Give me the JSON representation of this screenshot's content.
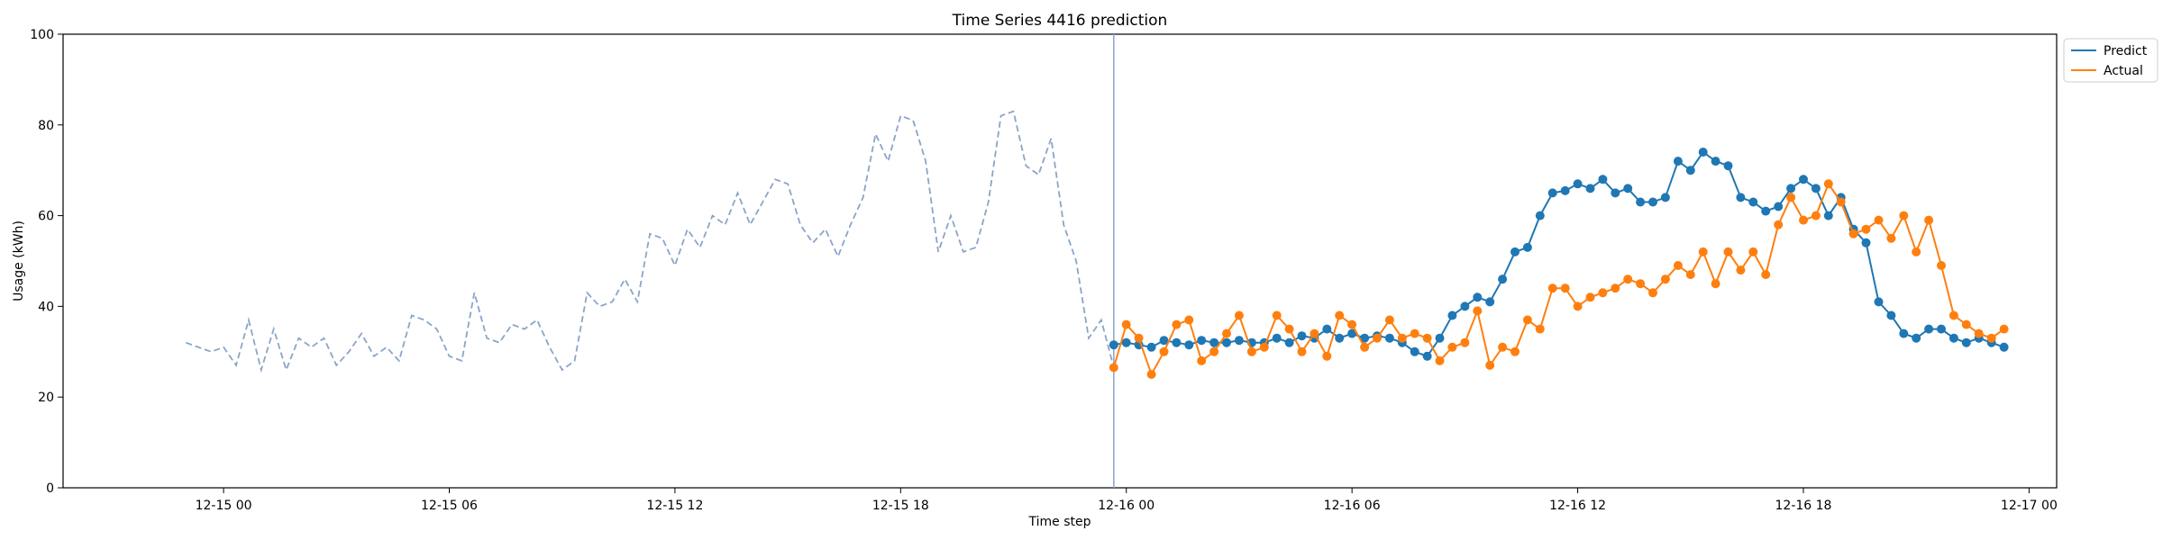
{
  "chart_data": {
    "type": "line",
    "title": "Time Series 4416 prediction",
    "xlabel": "Time step",
    "ylabel": "Usage (kWh)",
    "ylim": [
      0,
      100
    ],
    "y_ticks": [
      0,
      20,
      40,
      60,
      80,
      100
    ],
    "x_ticks": [
      "12-15 00",
      "12-15 06",
      "12-15 12",
      "12-15 18",
      "12-16 00",
      "12-16 06",
      "12-16 12",
      "12-16 18",
      "12-17 00"
    ],
    "legend_position": "outside-top-right",
    "colors": {
      "history": "#8aa5c8",
      "predict": "#1f77b4",
      "actual": "#ff7f0e",
      "divider": "#8aa5c8"
    },
    "history": {
      "x": [
        "2024-12-14 23:00",
        "2024-12-14 23:20",
        "2024-12-14 23:40",
        "2024-12-15 00:00",
        "2024-12-15 00:20",
        "2024-12-15 00:40",
        "2024-12-15 01:00",
        "2024-12-15 01:20",
        "2024-12-15 01:40",
        "2024-12-15 02:00",
        "2024-12-15 02:20",
        "2024-12-15 02:40",
        "2024-12-15 03:00",
        "2024-12-15 03:20",
        "2024-12-15 03:40",
        "2024-12-15 04:00",
        "2024-12-15 04:20",
        "2024-12-15 04:40",
        "2024-12-15 05:00",
        "2024-12-15 05:20",
        "2024-12-15 05:40",
        "2024-12-15 06:00",
        "2024-12-15 06:20",
        "2024-12-15 06:40",
        "2024-12-15 07:00",
        "2024-12-15 07:20",
        "2024-12-15 07:40",
        "2024-12-15 08:00",
        "2024-12-15 08:20",
        "2024-12-15 08:40",
        "2024-12-15 09:00",
        "2024-12-15 09:20",
        "2024-12-15 09:40",
        "2024-12-15 10:00",
        "2024-12-15 10:20",
        "2024-12-15 10:40",
        "2024-12-15 11:00",
        "2024-12-15 11:20",
        "2024-12-15 11:40",
        "2024-12-15 12:00",
        "2024-12-15 12:20",
        "2024-12-15 12:40",
        "2024-12-15 13:00",
        "2024-12-15 13:20",
        "2024-12-15 13:40",
        "2024-12-15 14:00",
        "2024-12-15 14:20",
        "2024-12-15 14:40",
        "2024-12-15 15:00",
        "2024-12-15 15:20",
        "2024-12-15 15:40",
        "2024-12-15 16:00",
        "2024-12-15 16:20",
        "2024-12-15 16:40",
        "2024-12-15 17:00",
        "2024-12-15 17:20",
        "2024-12-15 17:40",
        "2024-12-15 18:00",
        "2024-12-15 18:20",
        "2024-12-15 18:40",
        "2024-12-15 19:00",
        "2024-12-15 19:20",
        "2024-12-15 19:40",
        "2024-12-15 20:00",
        "2024-12-15 20:20",
        "2024-12-15 20:40",
        "2024-12-15 21:00",
        "2024-12-15 21:20",
        "2024-12-15 21:40",
        "2024-12-15 22:00",
        "2024-12-15 22:20",
        "2024-12-15 22:40",
        "2024-12-15 23:00",
        "2024-12-15 23:20"
      ],
      "y": [
        32,
        31,
        30,
        31,
        27,
        37,
        26,
        35,
        26,
        33,
        31,
        33,
        27,
        30,
        34,
        29,
        31,
        28,
        38,
        37,
        35,
        29,
        28,
        43,
        33,
        32,
        36,
        35,
        37,
        31,
        26,
        28,
        43,
        40,
        41,
        46,
        41,
        56,
        55,
        49,
        57,
        53,
        60,
        58,
        65,
        58,
        63,
        68,
        67,
        58,
        54,
        57,
        51,
        58,
        64,
        78,
        72,
        82,
        81,
        72,
        52,
        60,
        52,
        53,
        63,
        82,
        83,
        71,
        69,
        77,
        58,
        50,
        33,
        37
      ]
    },
    "predict": {
      "x": [
        "2024-12-15 23:40",
        "2024-12-16 00:00",
        "2024-12-16 00:20",
        "2024-12-16 00:40",
        "2024-12-16 01:00",
        "2024-12-16 01:20",
        "2024-12-16 01:40",
        "2024-12-16 02:00",
        "2024-12-16 02:20",
        "2024-12-16 02:40",
        "2024-12-16 03:00",
        "2024-12-16 03:20",
        "2024-12-16 03:40",
        "2024-12-16 04:00",
        "2024-12-16 04:20",
        "2024-12-16 04:40",
        "2024-12-16 05:00",
        "2024-12-16 05:20",
        "2024-12-16 05:40",
        "2024-12-16 06:00",
        "2024-12-16 06:20",
        "2024-12-16 06:40",
        "2024-12-16 07:00",
        "2024-12-16 07:20",
        "2024-12-16 07:40",
        "2024-12-16 08:00",
        "2024-12-16 08:20",
        "2024-12-16 08:40",
        "2024-12-16 09:00",
        "2024-12-16 09:20",
        "2024-12-16 09:40",
        "2024-12-16 10:00",
        "2024-12-16 10:20",
        "2024-12-16 10:40",
        "2024-12-16 11:00",
        "2024-12-16 11:20",
        "2024-12-16 11:40",
        "2024-12-16 12:00",
        "2024-12-16 12:20",
        "2024-12-16 12:40",
        "2024-12-16 13:00",
        "2024-12-16 13:20",
        "2024-12-16 13:40",
        "2024-12-16 14:00",
        "2024-12-16 14:20",
        "2024-12-16 14:40",
        "2024-12-16 15:00",
        "2024-12-16 15:20",
        "2024-12-16 15:40",
        "2024-12-16 16:00",
        "2024-12-16 16:20",
        "2024-12-16 16:40",
        "2024-12-16 17:00",
        "2024-12-16 17:20",
        "2024-12-16 17:40",
        "2024-12-16 18:00",
        "2024-12-16 18:20",
        "2024-12-16 18:40",
        "2024-12-16 19:00",
        "2024-12-16 19:20",
        "2024-12-16 19:40",
        "2024-12-16 20:00",
        "2024-12-16 20:20",
        "2024-12-16 20:40",
        "2024-12-16 21:00",
        "2024-12-16 21:20",
        "2024-12-16 21:40",
        "2024-12-16 22:00",
        "2024-12-16 22:20",
        "2024-12-16 22:40",
        "2024-12-16 23:00",
        "2024-12-16 23:20"
      ],
      "y": [
        31.5,
        32,
        31.5,
        31,
        32.5,
        32,
        31.5,
        32.5,
        32,
        32,
        32.5,
        32,
        32,
        33,
        32,
        33.5,
        33,
        35,
        33,
        34,
        33,
        33.5,
        33,
        32,
        30,
        29,
        33,
        38,
        40,
        42,
        41,
        46,
        52,
        53,
        60,
        65,
        65.5,
        67,
        66,
        68,
        65,
        66,
        63,
        63,
        64,
        72,
        70,
        74,
        72,
        71,
        64,
        63,
        61,
        62,
        66,
        68,
        66,
        60,
        64,
        57,
        54,
        41,
        38,
        34,
        33,
        35,
        35,
        33,
        32,
        33,
        32,
        31
      ]
    },
    "actual": {
      "x": [
        "2024-12-15 23:40",
        "2024-12-16 00:00",
        "2024-12-16 00:20",
        "2024-12-16 00:40",
        "2024-12-16 01:00",
        "2024-12-16 01:20",
        "2024-12-16 01:40",
        "2024-12-16 02:00",
        "2024-12-16 02:20",
        "2024-12-16 02:40",
        "2024-12-16 03:00",
        "2024-12-16 03:20",
        "2024-12-16 03:40",
        "2024-12-16 04:00",
        "2024-12-16 04:20",
        "2024-12-16 04:40",
        "2024-12-16 05:00",
        "2024-12-16 05:20",
        "2024-12-16 05:40",
        "2024-12-16 06:00",
        "2024-12-16 06:20",
        "2024-12-16 06:40",
        "2024-12-16 07:00",
        "2024-12-16 07:20",
        "2024-12-16 07:40",
        "2024-12-16 08:00",
        "2024-12-16 08:20",
        "2024-12-16 08:40",
        "2024-12-16 09:00",
        "2024-12-16 09:20",
        "2024-12-16 09:40",
        "2024-12-16 10:00",
        "2024-12-16 10:20",
        "2024-12-16 10:40",
        "2024-12-16 11:00",
        "2024-12-16 11:20",
        "2024-12-16 11:40",
        "2024-12-16 12:00",
        "2024-12-16 12:20",
        "2024-12-16 12:40",
        "2024-12-16 13:00",
        "2024-12-16 13:20",
        "2024-12-16 13:40",
        "2024-12-16 14:00",
        "2024-12-16 14:20",
        "2024-12-16 14:40",
        "2024-12-16 15:00",
        "2024-12-16 15:20",
        "2024-12-16 15:40",
        "2024-12-16 16:00",
        "2024-12-16 16:20",
        "2024-12-16 16:40",
        "2024-12-16 17:00",
        "2024-12-16 17:20",
        "2024-12-16 17:40",
        "2024-12-16 18:00",
        "2024-12-16 18:20",
        "2024-12-16 18:40",
        "2024-12-16 19:00",
        "2024-12-16 19:20",
        "2024-12-16 19:40",
        "2024-12-16 20:00",
        "2024-12-16 20:20",
        "2024-12-16 20:40",
        "2024-12-16 21:00",
        "2024-12-16 21:20",
        "2024-12-16 21:40",
        "2024-12-16 22:00",
        "2024-12-16 22:20",
        "2024-12-16 22:40",
        "2024-12-16 23:00",
        "2024-12-16 23:20"
      ],
      "y": [
        26.5,
        36,
        33,
        25,
        30,
        36,
        37,
        28,
        30,
        34,
        38,
        30,
        31,
        38,
        35,
        30,
        34,
        29,
        38,
        36,
        31,
        33,
        37,
        33,
        34,
        33,
        28,
        31,
        32,
        39,
        27,
        31,
        30,
        37,
        35,
        44,
        44,
        40,
        42,
        43,
        44,
        46,
        45,
        43,
        46,
        49,
        47,
        52,
        45,
        52,
        48,
        52,
        47,
        58,
        64,
        59,
        60,
        67,
        63,
        56,
        57,
        59,
        55,
        60,
        52,
        59,
        49,
        38,
        36,
        34,
        33,
        35
      ]
    },
    "legend": [
      {
        "name": "Predict",
        "color": "#1f77b4"
      },
      {
        "name": "Actual",
        "color": "#ff7f0e"
      }
    ]
  }
}
